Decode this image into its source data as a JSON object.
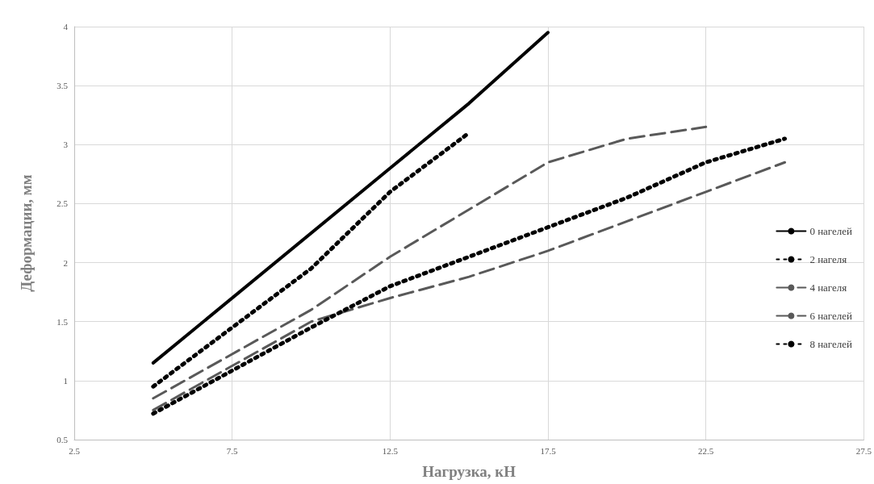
{
  "chart_data": {
    "type": "line",
    "xlabel": "Нагрузка, кН",
    "ylabel": "Деформации, мм",
    "xlim": [
      2.5,
      27.5
    ],
    "xticks": [
      2.5,
      7.5,
      12.5,
      17.5,
      22.5,
      27.5
    ],
    "ylim": [
      0.5,
      4
    ],
    "yticks": [
      0.5,
      1,
      1.5,
      2,
      2.5,
      3,
      3.5,
      4
    ],
    "grid": true,
    "legend": "right",
    "marker": "none",
    "series": [
      {
        "name": "0 нагелей",
        "color": "#000000",
        "line_style": "solid",
        "x": [
          5,
          12.5,
          15,
          17.5
        ],
        "values": [
          1.15,
          2.8,
          3.35,
          3.95
        ]
      },
      {
        "name": "2 нагеля",
        "color": "#000000",
        "line_style": "dotted",
        "x": [
          5,
          10,
          12.5,
          15
        ],
        "values": [
          0.95,
          1.95,
          2.6,
          3.1
        ]
      },
      {
        "name": "4 нагеля",
        "color": "#595959",
        "line_style": "dashed",
        "x": [
          5,
          10,
          12.5,
          15,
          17.5,
          20,
          22.5
        ],
        "values": [
          0.85,
          1.6,
          2.05,
          2.45,
          2.85,
          3.05,
          3.15
        ]
      },
      {
        "name": "6 нагелей",
        "color": "#595959",
        "line_style": "dashed",
        "x": [
          5,
          10,
          12.5,
          15,
          17.5,
          20,
          22.5,
          25
        ],
        "values": [
          0.75,
          1.5,
          1.7,
          1.88,
          2.1,
          2.35,
          2.6,
          2.85
        ]
      },
      {
        "name": "8 нагелей",
        "color": "#000000",
        "line_style": "dotted",
        "x": [
          5,
          10,
          12.5,
          14,
          17.5,
          20,
          22.5,
          25
        ],
        "values": [
          0.72,
          1.45,
          1.8,
          1.95,
          2.3,
          2.55,
          2.85,
          3.05
        ]
      }
    ]
  }
}
